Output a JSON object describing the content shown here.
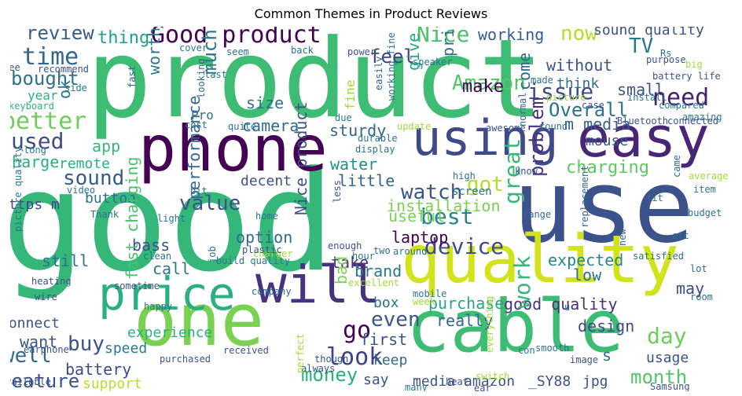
{
  "title": "Common Themes in Product Reviews",
  "words": [
    {
      "text": "good",
      "color": "#35b779"
    },
    {
      "text": "product",
      "color": "#3fbc73"
    },
    {
      "text": "use",
      "color": "#3b528b"
    },
    {
      "text": "one",
      "color": "#7ad151"
    },
    {
      "text": "cable",
      "color": "#3fbc73"
    },
    {
      "text": "quality",
      "color": "#d2e21b"
    },
    {
      "text": "phone",
      "color": "#440154"
    },
    {
      "text": "easy",
      "color": "#482575"
    },
    {
      "text": "using",
      "color": "#3e4a89"
    },
    {
      "text": "price",
      "color": "#2ab07f"
    },
    {
      "text": "will",
      "color": "#46327e"
    },
    {
      "text": "Good product",
      "color": "#440154"
    },
    {
      "text": "Nice",
      "color": "#4ac16d"
    },
    {
      "text": "time",
      "color": "#31688e"
    },
    {
      "text": "review",
      "color": "#365c8d"
    },
    {
      "text": "thing",
      "color": "#1fa188"
    },
    {
      "text": "feel",
      "color": "#424086"
    },
    {
      "text": "working",
      "color": "#365c8d"
    },
    {
      "text": "now",
      "color": "#b5de2b"
    },
    {
      "text": "sound quality",
      "color": "#3b528b"
    },
    {
      "text": "TV",
      "color": "#2a788e"
    },
    {
      "text": "without",
      "color": "#3b528b"
    },
    {
      "text": "bought",
      "color": "#2c728e"
    },
    {
      "text": "issue",
      "color": "#3e4a89"
    },
    {
      "text": "Amazon",
      "color": "#54c568"
    },
    {
      "text": "small",
      "color": "#3b528b"
    },
    {
      "text": "better",
      "color": "#6ece58"
    },
    {
      "text": "need",
      "color": "#481f70"
    },
    {
      "text": "Overall",
      "color": "#2c728e"
    },
    {
      "text": "used",
      "color": "#3e4a89"
    },
    {
      "text": "charge",
      "color": "#2ab07f"
    },
    {
      "text": "value",
      "color": "#3b528b"
    },
    {
      "text": "sound",
      "color": "#365c8d"
    },
    {
      "text": "watch",
      "color": "#39568c"
    },
    {
      "text": "got",
      "color": "#b5de2b"
    },
    {
      "text": "charging",
      "color": "#5ec962"
    },
    {
      "text": "best",
      "color": "#25848e"
    },
    {
      "text": "device",
      "color": "#3e4a89"
    },
    {
      "text": "make",
      "color": "#440154"
    },
    {
      "text": "much",
      "color": "#2a788e"
    },
    {
      "text": "worth",
      "color": "#2a788e"
    },
    {
      "text": "camera",
      "color": "#31688e"
    },
    {
      "text": "size",
      "color": "#2c728e"
    },
    {
      "text": "price range",
      "color": "#2c728e"
    },
    {
      "text": "give",
      "color": "#22a785"
    },
    {
      "text": "come",
      "color": "#31688e"
    },
    {
      "text": "m media",
      "color": "#365c8d"
    },
    {
      "text": "mouse",
      "color": "#3b528b"
    },
    {
      "text": "think",
      "color": "#2c728e"
    },
    {
      "text": "water",
      "color": "#21918c"
    },
    {
      "text": "sturdy",
      "color": "#31688e"
    },
    {
      "text": "app",
      "color": "#35b779"
    },
    {
      "text": "remote",
      "color": "#2ab07f"
    },
    {
      "text": "button",
      "color": "#2c728e"
    },
    {
      "text": "https m",
      "color": "#3e4a89"
    },
    {
      "text": "decent",
      "color": "#3b528b"
    },
    {
      "text": "little",
      "color": "#31688e"
    },
    {
      "text": "installation",
      "color": "#7ad151"
    },
    {
      "text": "useful",
      "color": "#7ad151"
    },
    {
      "text": "laptop",
      "color": "#440154"
    },
    {
      "text": "take",
      "color": "#46327e"
    },
    {
      "text": "still",
      "color": "#2c728e"
    },
    {
      "text": "brand",
      "color": "#2a788e"
    },
    {
      "text": "great",
      "color": "#35b779"
    },
    {
      "text": "problem",
      "color": "#46327e"
    },
    {
      "text": "expected",
      "color": "#25848e"
    },
    {
      "text": "low",
      "color": "#2c728e"
    },
    {
      "text": "performance",
      "color": "#31688e"
    },
    {
      "text": "option",
      "color": "#31688e"
    },
    {
      "text": "call",
      "color": "#2a788e"
    },
    {
      "text": "bass",
      "color": "#3b528b"
    },
    {
      "text": "fast charging",
      "color": "#4ac16d"
    },
    {
      "text": "Nice product",
      "color": "#3b528b"
    },
    {
      "text": "may",
      "color": "#3e4a89"
    },
    {
      "text": "bad",
      "color": "#7ad151"
    },
    {
      "text": "box",
      "color": "#2c728e"
    },
    {
      "text": "purchase",
      "color": "#22a785"
    },
    {
      "text": "good quality",
      "color": "#46327e"
    },
    {
      "text": "even",
      "color": "#39568c"
    },
    {
      "text": "really",
      "color": "#31688e"
    },
    {
      "text": "work",
      "color": "#35b779"
    },
    {
      "text": "day",
      "color": "#6ece58"
    },
    {
      "text": "design",
      "color": "#3e4a89"
    },
    {
      "text": "connect",
      "color": "#3b528b"
    },
    {
      "text": "experience",
      "color": "#2ab07f"
    },
    {
      "text": "want",
      "color": "#3b528b"
    },
    {
      "text": "well",
      "color": "#31688e"
    },
    {
      "text": "buy",
      "color": "#3b528b"
    },
    {
      "text": "speed",
      "color": "#2a788e"
    },
    {
      "text": "go",
      "color": "#440154"
    },
    {
      "text": "first",
      "color": "#3b528b"
    },
    {
      "text": "look",
      "color": "#424086"
    },
    {
      "text": "keep",
      "color": "#31688e"
    },
    {
      "text": "battery",
      "color": "#3e4a89"
    },
    {
      "text": "feature",
      "color": "#3b528b"
    },
    {
      "text": "support",
      "color": "#b5de2b"
    },
    {
      "text": "money",
      "color": "#2ab07f"
    },
    {
      "text": "say",
      "color": "#3b528b"
    },
    {
      "text": "media amazon",
      "color": "#3b528b"
    },
    {
      "text": "_SY88",
      "color": "#3b528b"
    },
    {
      "text": "jpg",
      "color": "#3b528b"
    },
    {
      "text": "s",
      "color": "#2a788e"
    },
    {
      "text": "usage",
      "color": "#3b528b"
    },
    {
      "text": "month",
      "color": "#54c568"
    },
    {
      "text": "ok",
      "color": "#2a788e"
    },
    {
      "text": "Pro",
      "color": "#2c728e"
    },
    {
      "text": "fine",
      "color": "#a0da39"
    },
    {
      "text": "year",
      "color": "#2ab07f"
    },
    {
      "text": "keyboard",
      "color": "#2ab07f"
    },
    {
      "text": "recommend",
      "color": "#3b528b"
    },
    {
      "text": "see",
      "color": "#3b528b"
    },
    {
      "text": "side",
      "color": "#2c728e"
    },
    {
      "text": "fast",
      "color": "#31688e"
    },
    {
      "text": "cover",
      "color": "#2a788e"
    },
    {
      "text": "seem",
      "color": "#2c728e"
    },
    {
      "text": "back",
      "color": "#2c728e"
    },
    {
      "text": "power",
      "color": "#3b528b"
    },
    {
      "text": "speaker",
      "color": "#2c728e"
    },
    {
      "text": "Rs",
      "color": "#2c728e"
    },
    {
      "text": "purpose",
      "color": "#3b528b"
    },
    {
      "text": "big",
      "color": "#a0da39"
    },
    {
      "text": "last",
      "color": "#2c728e"
    },
    {
      "text": "looking",
      "color": "#31688e"
    },
    {
      "text": "due",
      "color": "#2a788e"
    },
    {
      "text": "easily",
      "color": "#31688e"
    },
    {
      "text": "working fine",
      "color": "#2c728e"
    },
    {
      "text": "made",
      "color": "#2c728e"
    },
    {
      "text": "install",
      "color": "#2a788e"
    },
    {
      "text": "battery life",
      "color": "#3b528b"
    },
    {
      "text": "case",
      "color": "#3b528b"
    },
    {
      "text": "compared",
      "color": "#2a788e"
    },
    {
      "text": "amazing",
      "color": "#2a788e"
    },
    {
      "text": "picture",
      "color": "#a0da39"
    },
    {
      "text": "Bluetooth",
      "color": "#3b528b"
    },
    {
      "text": "connected",
      "color": "#3b528b"
    },
    {
      "text": "cost",
      "color": "#2c728e"
    },
    {
      "text": "quite",
      "color": "#2c728e"
    },
    {
      "text": "update",
      "color": "#a0da39"
    },
    {
      "text": "found",
      "color": "#2c728e"
    },
    {
      "text": "awesome",
      "color": "#3b528b"
    },
    {
      "text": "normal",
      "color": "#31688e"
    },
    {
      "text": "long",
      "color": "#2a788e"
    },
    {
      "text": "display",
      "color": "#2c728e"
    },
    {
      "text": "durable",
      "color": "#2c728e"
    },
    {
      "text": "high",
      "color": "#2c728e"
    },
    {
      "text": "know",
      "color": "#3b528b"
    },
    {
      "text": "screen",
      "color": "#2a788e"
    },
    {
      "text": "average",
      "color": "#a0da39"
    },
    {
      "text": "came",
      "color": "#31688e"
    },
    {
      "text": "fit",
      "color": "#31688e"
    },
    {
      "text": "item",
      "color": "#2c728e"
    },
    {
      "text": "video",
      "color": "#2c728e"
    },
    {
      "text": "bit",
      "color": "#2c728e"
    },
    {
      "text": "Thank",
      "color": "#2c728e"
    },
    {
      "text": "light",
      "color": "#2c728e"
    },
    {
      "text": "home",
      "color": "#2a788e"
    },
    {
      "text": "less",
      "color": "#3b528b"
    },
    {
      "text": "range",
      "color": "#31688e"
    },
    {
      "text": "budget",
      "color": "#2c728e"
    },
    {
      "text": "charger",
      "color": "#a0da39"
    },
    {
      "text": "plastic",
      "color": "#3b528b"
    },
    {
      "text": "enough",
      "color": "#3b528b"
    },
    {
      "text": "hour",
      "color": "#2c728e"
    },
    {
      "text": "replacement",
      "color": "#31688e"
    },
    {
      "text": "etc",
      "color": "#2c728e"
    },
    {
      "text": "picture quality",
      "color": "#2a788e"
    },
    {
      "text": "clean",
      "color": "#2c728e"
    },
    {
      "text": "two",
      "color": "#31688e"
    },
    {
      "text": "around",
      "color": "#2a788e"
    },
    {
      "text": "new",
      "color": "#31688e"
    },
    {
      "text": "satisfied",
      "color": "#31688e"
    },
    {
      "text": "lot",
      "color": "#31688e"
    },
    {
      "text": "job",
      "color": "#2c728e"
    },
    {
      "text": "build quality",
      "color": "#2a788e"
    },
    {
      "text": "sometime",
      "color": "#3b528b"
    },
    {
      "text": "heating",
      "color": "#3b528b"
    },
    {
      "text": "excellent",
      "color": "#a0da39"
    },
    {
      "text": "company",
      "color": "#31688e"
    },
    {
      "text": "mobile",
      "color": "#2a788e"
    },
    {
      "text": "room",
      "color": "#2c728e"
    },
    {
      "text": "happy",
      "color": "#2c728e"
    },
    {
      "text": "wire",
      "color": "#3b528b"
    },
    {
      "text": "week",
      "color": "#a0da39"
    },
    {
      "text": "u",
      "color": "#2a788e"
    },
    {
      "text": "earphone",
      "color": "#3b528b"
    },
    {
      "text": "received",
      "color": "#3b528b"
    },
    {
      "text": "purchased",
      "color": "#3b528b"
    },
    {
      "text": "though",
      "color": "#3b528b"
    },
    {
      "text": "con",
      "color": "#2a788e"
    },
    {
      "text": "smooth",
      "color": "#2c728e"
    },
    {
      "text": "image",
      "color": "#3b528b"
    },
    {
      "text": "always",
      "color": "#3b528b"
    },
    {
      "text": "switch",
      "color": "#a0da39"
    },
    {
      "text": "heat",
      "color": "#3b528b"
    },
    {
      "text": "everything",
      "color": "#a0da39"
    },
    {
      "text": "available",
      "color": "#3b528b"
    },
    {
      "text": "perfect",
      "color": "#a0da39"
    },
    {
      "text": "many",
      "color": "#2a788e"
    },
    {
      "text": "ear",
      "color": "#3b528b"
    },
    {
      "text": "Samsung",
      "color": "#3b528b"
    }
  ]
}
